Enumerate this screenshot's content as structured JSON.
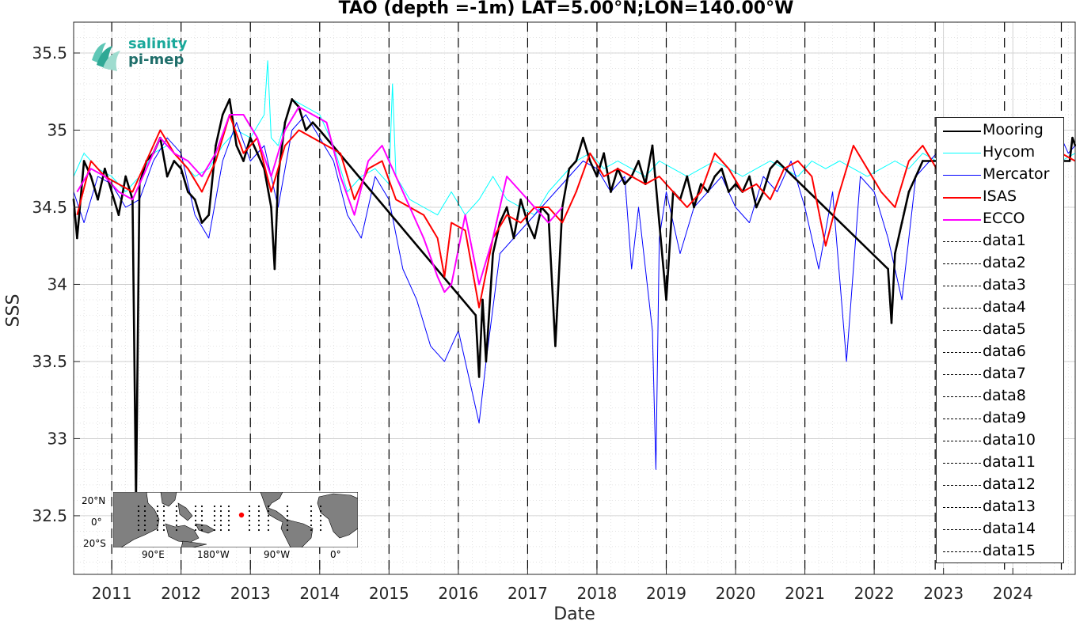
{
  "chart_data": {
    "type": "line",
    "title": "TAO (depth =-1m) LAT=5.00°N;LON=140.00°W",
    "xlabel": "Date",
    "ylabel": "SSS",
    "xlim": [
      2010.45,
      2024.9
    ],
    "ylim": [
      32.12,
      35.7
    ],
    "x_ticks": [
      2011,
      2012,
      2013,
      2014,
      2015,
      2016,
      2017,
      2018,
      2019,
      2020,
      2021,
      2022,
      2023,
      2024
    ],
    "x_tick_labels": [
      "2011",
      "2012",
      "2013",
      "2014",
      "2015",
      "2016",
      "2017",
      "2018",
      "2019",
      "2020",
      "2021",
      "2022",
      "2023",
      "2024"
    ],
    "y_ticks": [
      32.5,
      33,
      33.5,
      34,
      34.5,
      35,
      35.5
    ],
    "y_tick_labels": [
      "32.5",
      "33",
      "33.5",
      "34",
      "34.5",
      "35",
      "35.5"
    ],
    "grid": true,
    "minor_grid": true,
    "legend_position": "right",
    "vlines": [
      2011.0,
      2012.0,
      2013.0,
      2014.0,
      2015.0,
      2016.0,
      2017.0,
      2018.0,
      2019.0,
      2020.0,
      2021.0,
      2022.0,
      2022.88,
      2023.88,
      2024.7
    ],
    "series": [
      {
        "name": "Mooring",
        "color": "#000000",
        "width": 2.6,
        "x": [
          2010.45,
          2010.5,
          2010.6,
          2010.7,
          2010.8,
          2010.9,
          2011.0,
          2011.1,
          2011.2,
          2011.3,
          2011.35,
          2011.4,
          2011.5,
          2011.6,
          2011.7,
          2011.8,
          2011.9,
          2012.0,
          2012.1,
          2012.2,
          2012.3,
          2012.4,
          2012.5,
          2012.6,
          2012.7,
          2012.8,
          2012.9,
          2013.0,
          2013.1,
          2013.2,
          2013.3,
          2013.35,
          2013.4,
          2013.5,
          2013.6,
          2013.7,
          2013.8,
          2013.9,
          2014.0,
          2016.25,
          2016.3,
          2016.35,
          2016.4,
          2016.5,
          2016.6,
          2016.7,
          2016.8,
          2016.9,
          2017.0,
          2017.1,
          2017.2,
          2017.3,
          2017.4,
          2017.5,
          2017.6,
          2017.7,
          2017.8,
          2017.9,
          2018.0,
          2018.1,
          2018.2,
          2018.3,
          2018.4,
          2018.5,
          2018.6,
          2018.7,
          2018.8,
          2018.9,
          2019.0,
          2019.1,
          2019.2,
          2019.3,
          2019.4,
          2019.5,
          2019.6,
          2019.7,
          2019.8,
          2019.9,
          2020.0,
          2020.1,
          2020.2,
          2020.3,
          2020.4,
          2020.5,
          2020.6,
          2022.2,
          2022.25,
          2022.3,
          2022.4,
          2022.5,
          2022.6,
          2022.7,
          2024.82,
          2024.86,
          2024.9
        ],
        "y": [
          34.55,
          34.3,
          34.8,
          34.7,
          34.55,
          34.75,
          34.6,
          34.45,
          34.7,
          34.55,
          32.6,
          34.65,
          34.8,
          34.85,
          34.95,
          34.7,
          34.8,
          34.75,
          34.6,
          34.55,
          34.4,
          34.45,
          34.9,
          35.1,
          35.2,
          34.9,
          34.8,
          34.95,
          34.85,
          34.75,
          34.5,
          34.1,
          34.7,
          35.05,
          35.2,
          35.15,
          35.0,
          35.05,
          35.0,
          33.8,
          33.4,
          33.9,
          33.5,
          34.2,
          34.4,
          34.5,
          34.3,
          34.55,
          34.4,
          34.3,
          34.5,
          34.45,
          33.6,
          34.5,
          34.75,
          34.8,
          34.95,
          34.8,
          34.7,
          34.85,
          34.6,
          34.75,
          34.65,
          34.7,
          34.8,
          34.65,
          34.9,
          34.4,
          33.9,
          34.6,
          34.55,
          34.7,
          34.5,
          34.65,
          34.6,
          34.7,
          34.75,
          34.6,
          34.65,
          34.6,
          34.7,
          34.5,
          34.6,
          34.75,
          34.8,
          34.1,
          33.75,
          34.2,
          34.4,
          34.6,
          34.7,
          34.8,
          34.8,
          34.95,
          34.9
        ]
      },
      {
        "name": "Hycom",
        "color": "#00ffff",
        "width": 1,
        "x": [
          2010.45,
          2010.6,
          2010.8,
          2011.0,
          2011.2,
          2011.4,
          2011.6,
          2011.8,
          2012.0,
          2012.2,
          2012.4,
          2012.6,
          2012.8,
          2013.0,
          2013.2,
          2013.25,
          2013.3,
          2013.4,
          2013.6,
          2013.8,
          2014.0,
          2014.2,
          2014.4,
          2014.6,
          2014.8,
          2015.0,
          2015.05,
          2015.1,
          2015.3,
          2015.5,
          2015.7,
          2015.9,
          2016.1,
          2016.3,
          2016.5,
          2016.7,
          2016.9,
          2017.1,
          2017.3,
          2017.5,
          2017.7,
          2017.9,
          2018.1,
          2018.3,
          2018.5,
          2018.7,
          2018.9,
          2019.1,
          2019.3,
          2019.5,
          2019.7,
          2019.9,
          2020.1,
          2020.3,
          2020.5,
          2020.7,
          2020.9,
          2021.1,
          2021.3,
          2021.5,
          2021.7,
          2021.9,
          2022.1,
          2022.3,
          2022.5,
          2022.7,
          2022.9,
          2023.1,
          2023.3,
          2023.5,
          2023.7,
          2023.9,
          2024.1,
          2024.3,
          2024.5,
          2024.7,
          2024.9
        ],
        "y": [
          34.7,
          34.85,
          34.75,
          34.7,
          34.6,
          34.7,
          34.85,
          34.9,
          34.8,
          34.7,
          34.75,
          34.9,
          35.0,
          34.95,
          35.1,
          35.45,
          34.95,
          34.9,
          35.2,
          35.15,
          35.1,
          34.9,
          34.6,
          34.7,
          34.75,
          34.65,
          35.3,
          34.7,
          34.55,
          34.5,
          34.45,
          34.6,
          34.45,
          34.55,
          34.7,
          34.55,
          34.5,
          34.45,
          34.6,
          34.7,
          34.8,
          34.85,
          34.75,
          34.8,
          34.75,
          34.7,
          34.8,
          34.75,
          34.7,
          34.75,
          34.8,
          34.75,
          34.7,
          34.75,
          34.8,
          34.75,
          34.7,
          34.8,
          34.75,
          34.8,
          34.75,
          34.7,
          34.75,
          34.8,
          34.75,
          34.85,
          34.8,
          34.85,
          34.75,
          34.8,
          34.7,
          34.8,
          34.85,
          34.9,
          34.75,
          34.8,
          34.85
        ]
      },
      {
        "name": "Mercator",
        "color": "#0000ff",
        "width": 1,
        "x": [
          2010.45,
          2010.6,
          2010.8,
          2011.0,
          2011.2,
          2011.4,
          2011.6,
          2011.8,
          2012.0,
          2012.2,
          2012.4,
          2012.6,
          2012.8,
          2013.0,
          2013.2,
          2013.4,
          2013.6,
          2013.8,
          2014.0,
          2014.2,
          2014.4,
          2014.6,
          2014.8,
          2015.0,
          2015.2,
          2015.4,
          2015.6,
          2015.8,
          2016.0,
          2016.2,
          2016.3,
          2016.4,
          2016.6,
          2016.8,
          2017.0,
          2017.2,
          2017.4,
          2017.6,
          2017.8,
          2018.0,
          2018.2,
          2018.4,
          2018.5,
          2018.6,
          2018.8,
          2018.85,
          2018.9,
          2019.0,
          2019.2,
          2019.4,
          2019.6,
          2019.8,
          2020.0,
          2020.2,
          2020.4,
          2020.6,
          2020.8,
          2021.0,
          2021.2,
          2021.4,
          2021.6,
          2021.8,
          2022.0,
          2022.2,
          2022.4,
          2022.6,
          2022.8,
          2023.0,
          2023.2,
          2023.4,
          2023.6,
          2023.8,
          2024.0,
          2024.2,
          2024.4,
          2024.6,
          2024.8,
          2024.9
        ],
        "y": [
          34.6,
          34.4,
          34.7,
          34.65,
          34.5,
          34.55,
          34.8,
          34.95,
          34.85,
          34.45,
          34.3,
          34.8,
          35.05,
          34.8,
          34.9,
          34.5,
          35.0,
          35.1,
          34.95,
          34.8,
          34.45,
          34.3,
          34.7,
          34.55,
          34.1,
          33.9,
          33.6,
          33.5,
          33.7,
          33.3,
          33.1,
          33.5,
          34.2,
          34.3,
          34.4,
          34.5,
          34.6,
          34.7,
          34.8,
          34.75,
          34.6,
          34.7,
          34.1,
          34.5,
          33.7,
          32.8,
          34.3,
          34.6,
          34.2,
          34.5,
          34.6,
          34.7,
          34.5,
          34.4,
          34.7,
          34.6,
          34.8,
          34.5,
          34.1,
          34.6,
          33.5,
          34.7,
          34.6,
          34.3,
          33.9,
          34.7,
          34.8,
          34.9,
          34.8,
          34.6,
          34.9,
          35.05,
          34.8,
          35.0,
          34.9,
          35.05,
          34.85,
          34.9
        ]
      },
      {
        "name": "ISAS",
        "color": "#ff0000",
        "width": 2,
        "x": [
          2010.5,
          2010.7,
          2010.9,
          2011.1,
          2011.3,
          2011.5,
          2011.7,
          2011.9,
          2012.1,
          2012.3,
          2012.5,
          2012.7,
          2012.9,
          2013.1,
          2013.3,
          2013.5,
          2013.7,
          2013.9,
          2014.1,
          2014.3,
          2014.5,
          2014.7,
          2014.9,
          2015.1,
          2015.3,
          2015.5,
          2015.7,
          2015.8,
          2015.9,
          2016.1,
          2016.3,
          2016.5,
          2016.7,
          2016.9,
          2017.1,
          2017.3,
          2017.5,
          2017.7,
          2017.9,
          2018.1,
          2018.3,
          2018.5,
          2018.7,
          2018.9,
          2019.1,
          2019.3,
          2019.5,
          2019.7,
          2019.9,
          2020.1,
          2020.3,
          2020.5,
          2020.7,
          2020.9,
          2021.1,
          2021.3,
          2021.5,
          2021.7,
          2021.9,
          2022.1,
          2022.3,
          2022.5,
          2022.7,
          2022.9,
          2023.1,
          2023.3,
          2023.5,
          2023.7,
          2023.9,
          2024.1,
          2024.3,
          2024.5,
          2024.7,
          2024.9
        ],
        "y": [
          34.45,
          34.8,
          34.7,
          34.65,
          34.6,
          34.8,
          35.0,
          34.85,
          34.75,
          34.6,
          34.8,
          35.1,
          34.85,
          34.95,
          34.6,
          34.9,
          35.0,
          34.95,
          34.9,
          34.85,
          34.55,
          34.75,
          34.8,
          34.55,
          34.5,
          34.45,
          34.3,
          34.05,
          34.4,
          34.35,
          33.85,
          34.3,
          34.45,
          34.4,
          34.5,
          34.5,
          34.4,
          34.6,
          34.85,
          34.7,
          34.75,
          34.7,
          34.65,
          34.7,
          34.6,
          34.5,
          34.6,
          34.85,
          34.75,
          34.6,
          34.65,
          34.55,
          34.75,
          34.8,
          34.7,
          34.25,
          34.6,
          34.9,
          34.75,
          34.6,
          34.5,
          34.8,
          34.9,
          34.75,
          34.9,
          34.85,
          34.95,
          34.9,
          34.8,
          34.85,
          34.9,
          34.8,
          34.85,
          34.8
        ]
      },
      {
        "name": "ECCO",
        "color": "#ff00ff",
        "width": 2,
        "x": [
          2010.5,
          2010.7,
          2010.9,
          2011.1,
          2011.3,
          2011.5,
          2011.7,
          2011.9,
          2012.1,
          2012.3,
          2012.5,
          2012.7,
          2012.9,
          2013.1,
          2013.3,
          2013.5,
          2013.7,
          2013.9,
          2014.1,
          2014.3,
          2014.5,
          2014.7,
          2014.9,
          2015.1,
          2015.3,
          2015.5,
          2015.7,
          2015.8,
          2015.9,
          2016.1,
          2016.3,
          2016.5,
          2016.7,
          2016.9,
          2017.1,
          2017.3,
          2017.5
        ],
        "y": [
          34.6,
          34.75,
          34.7,
          34.6,
          34.55,
          34.75,
          34.95,
          34.85,
          34.8,
          34.7,
          34.85,
          35.1,
          35.1,
          34.95,
          34.7,
          35.0,
          35.15,
          35.1,
          35.05,
          34.7,
          34.45,
          34.8,
          34.9,
          34.7,
          34.5,
          34.3,
          34.05,
          33.95,
          34.0,
          34.45,
          34.0,
          34.3,
          34.7,
          34.6,
          34.5,
          34.4,
          34.5
        ]
      },
      {
        "name": "data1",
        "color": "#000000",
        "dashed": true
      },
      {
        "name": "data2",
        "color": "#000000",
        "dashed": true
      },
      {
        "name": "data3",
        "color": "#000000",
        "dashed": true
      },
      {
        "name": "data4",
        "color": "#000000",
        "dashed": true
      },
      {
        "name": "data5",
        "color": "#000000",
        "dashed": true
      },
      {
        "name": "data6",
        "color": "#000000",
        "dashed": true
      },
      {
        "name": "data7",
        "color": "#000000",
        "dashed": true
      },
      {
        "name": "data8",
        "color": "#000000",
        "dashed": true
      },
      {
        "name": "data9",
        "color": "#000000",
        "dashed": true
      },
      {
        "name": "data10",
        "color": "#000000",
        "dashed": true
      },
      {
        "name": "data11",
        "color": "#000000",
        "dashed": true
      },
      {
        "name": "data12",
        "color": "#000000",
        "dashed": true
      },
      {
        "name": "data13",
        "color": "#000000",
        "dashed": true
      },
      {
        "name": "data14",
        "color": "#000000",
        "dashed": true
      },
      {
        "name": "data15",
        "color": "#000000",
        "dashed": true
      }
    ]
  },
  "logo": {
    "line1": "salinity",
    "line2": "pi-mep"
  },
  "inset_map": {
    "y_ticks": [
      "20°N",
      "0°",
      "20°S"
    ],
    "x_ticks": [
      "90°E",
      "180°W",
      "90°W",
      "0°"
    ],
    "marker_color": "#ff0000"
  }
}
